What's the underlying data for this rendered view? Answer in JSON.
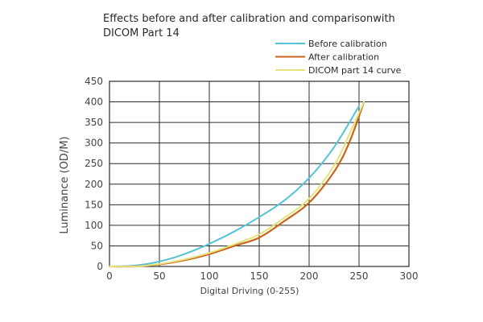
{
  "chart_data": {
    "type": "line",
    "title": "Effects before and after calibration and comparisonwith\nDICOM Part 14",
    "xlabel": "Digital Driving (0-255)",
    "ylabel": "Luminance (OD/M)",
    "xlim": [
      0,
      300
    ],
    "ylim": [
      0,
      450
    ],
    "xticks": [
      "0",
      "50",
      "100",
      "150",
      "200",
      "250",
      "300"
    ],
    "yticks": [
      "0",
      "50",
      "100",
      "150",
      "200",
      "250",
      "300",
      "350",
      "400",
      "450"
    ],
    "xtick_values": [
      0,
      50,
      100,
      150,
      200,
      250,
      300
    ],
    "ytick_values": [
      0,
      50,
      100,
      150,
      200,
      250,
      300,
      350,
      400,
      450
    ],
    "grid": true,
    "legend_position": "top-right",
    "series": [
      {
        "name": "Before calibration",
        "color": "#57c2d6",
        "x": [
          0,
          25,
          50,
          75,
          100,
          125,
          150,
          175,
          200,
          225,
          250
        ],
        "y": [
          0,
          2,
          12,
          30,
          55,
          85,
          120,
          160,
          215,
          290,
          390
        ]
      },
      {
        "name": "After calibration",
        "color": "#c8641e",
        "x": [
          0,
          25,
          50,
          75,
          100,
          125,
          150,
          175,
          200,
          225,
          240,
          255
        ],
        "y": [
          0,
          0,
          5,
          15,
          30,
          50,
          70,
          110,
          155,
          230,
          300,
          400
        ]
      },
      {
        "name": "DICOM part 14 curve",
        "color": "#e6e37a",
        "x": [
          0,
          25,
          50,
          75,
          100,
          125,
          150,
          175,
          200,
          225,
          240,
          255
        ],
        "y": [
          0,
          0,
          6,
          17,
          33,
          54,
          78,
          118,
          165,
          245,
          320,
          400
        ]
      }
    ]
  }
}
